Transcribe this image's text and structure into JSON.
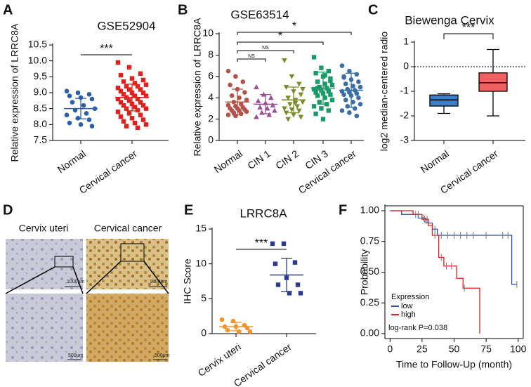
{
  "chart_data": [
    {
      "panel": "A",
      "type": "dotplot",
      "title": "GSE52904",
      "ylabel": "Relative expression of LRRC8A",
      "categories": [
        "Normal",
        "Cervical cancer"
      ],
      "colors": [
        "#2b5fa6",
        "#e3201b"
      ],
      "markers": [
        "circle",
        "square"
      ],
      "values": [
        [
          9.05,
          9.0,
          8.95,
          8.9,
          8.85,
          8.8,
          8.7,
          8.6,
          8.5,
          8.45,
          8.35,
          8.3,
          8.2,
          8.15,
          8.05,
          8.0,
          7.95
        ],
        [
          9.95,
          9.8,
          9.6,
          9.55,
          9.45,
          9.4,
          9.35,
          9.3,
          9.25,
          9.2,
          9.2,
          9.15,
          9.1,
          9.1,
          9.05,
          9.0,
          9.0,
          8.95,
          8.9,
          8.9,
          8.85,
          8.8,
          8.8,
          8.75,
          8.7,
          8.7,
          8.65,
          8.6,
          8.6,
          8.55,
          8.5,
          8.5,
          8.45,
          8.4,
          8.35,
          8.3,
          8.25,
          8.2,
          8.15,
          8.1,
          8.05,
          8.0,
          7.95,
          7.9
        ]
      ],
      "means": [
        8.5,
        8.85
      ],
      "sds": [
        0.32,
        0.42
      ],
      "annotations": [
        "***"
      ],
      "ylim": [
        7.5,
        10.5
      ],
      "yticks": [
        {
          "value": 7.5,
          "label": "7.5"
        },
        {
          "value": 8,
          "label": "8.0"
        },
        {
          "value": 8.5,
          "label": "8.5"
        },
        {
          "value": 9,
          "label": "9.0"
        },
        {
          "value": 9.5,
          "label": "9.5"
        },
        {
          "value": 10,
          "label": "10.0"
        },
        {
          "value": 10.5,
          "label": "10.5"
        }
      ]
    },
    {
      "panel": "B",
      "type": "dotplot",
      "title": "GSE63514",
      "ylabel": "Relative expression of LRRC8A",
      "categories": [
        "Normal",
        "CIN 1",
        "CIN 2",
        "CIN 3",
        "Cervical cancer"
      ],
      "colors": [
        "#b5524a",
        "#9b4f96",
        "#7d8b2e",
        "#1a9a6a",
        "#3a6ea5"
      ],
      "markers": [
        "circle",
        "tri-up",
        "tri-down",
        "square",
        "circle"
      ],
      "values": [
        [
          6.5,
          6.0,
          5.5,
          5.2,
          4.8,
          4.5,
          4.2,
          4.0,
          3.8,
          3.6,
          3.4,
          3.3,
          3.2,
          3.1,
          3.0,
          3.0,
          2.9,
          2.8,
          2.8,
          2.7,
          2.6,
          2.5,
          2.4,
          2.3
        ],
        [
          5.0,
          4.3,
          4.0,
          3.7,
          3.5,
          3.3,
          3.1,
          3.0,
          2.8,
          2.6,
          2.4,
          2.2
        ],
        [
          7.5,
          6.0,
          5.3,
          5.0,
          4.6,
          4.3,
          4.0,
          3.8,
          3.6,
          3.4,
          3.2,
          3.0,
          2.9,
          2.8,
          2.6,
          2.4,
          2.2,
          2.0,
          3.5,
          4.8
        ],
        [
          7.8,
          6.8,
          6.5,
          6.3,
          6.0,
          5.8,
          5.5,
          5.3,
          5.2,
          5.0,
          4.9,
          4.8,
          4.7,
          4.6,
          4.5,
          4.4,
          4.3,
          4.2,
          4.0,
          3.8,
          3.6,
          3.4,
          3.2,
          3.0,
          2.8,
          2.5,
          2.0,
          5.6,
          4.9,
          6.1
        ],
        [
          7.0,
          6.5,
          6.2,
          6.0,
          5.7,
          5.5,
          5.3,
          5.1,
          5.0,
          4.8,
          4.7,
          4.6,
          4.5,
          4.4,
          4.3,
          4.2,
          4.0,
          3.8,
          3.6,
          3.4,
          3.2,
          3.0,
          2.8,
          2.6,
          2.3,
          5.9
        ]
      ],
      "means": [
        3.6,
        3.4,
        3.8,
        4.9,
        4.7
      ],
      "sds": [
        1.2,
        0.9,
        1.2,
        1.5,
        1.6
      ],
      "annotations": [
        "NS",
        "NS",
        "*",
        "*"
      ],
      "ylim": [
        0,
        10
      ],
      "yticks": [
        0,
        2,
        4,
        6,
        8,
        10
      ]
    },
    {
      "panel": "C",
      "type": "box",
      "title": "Biewenga Cervix",
      "ylabel": "log2 median-centered radio",
      "categories": [
        "Normal",
        "Cervical cancer"
      ],
      "colors": [
        "#3d7ec7",
        "#f06060"
      ],
      "boxes": [
        {
          "min": -1.9,
          "q1": -1.6,
          "median": -1.35,
          "q3": -1.15,
          "max": -1.1
        },
        {
          "min": -2.0,
          "q1": -1.0,
          "median": -0.65,
          "q3": -0.25,
          "max": 0.7
        }
      ],
      "hline": 0,
      "annotations": [
        "***"
      ],
      "ylim": [
        -3,
        1
      ],
      "yticks": [
        -3,
        -2,
        -1,
        0,
        1
      ]
    },
    {
      "panel": "E",
      "type": "dotplot",
      "title": "LRRC8A",
      "ylabel": "IHC Score",
      "categories": [
        "Cervix uteri",
        "Cervical cancer"
      ],
      "colors": [
        "#f0962e",
        "#2e3a8c"
      ],
      "markers": [
        "circle",
        "square"
      ],
      "values": [
        [
          2.0,
          1.8,
          1.2,
          1.0,
          1.0,
          0.8,
          0.5,
          0.3,
          0.3
        ],
        [
          12.9,
          12.9,
          10.2,
          10.0,
          8.0,
          7.0,
          7.0,
          5.8,
          5.8
        ]
      ],
      "means": [
        1.0,
        8.4
      ],
      "sds": [
        0.6,
        2.4
      ],
      "annotations": [
        "***"
      ],
      "ylim": [
        0,
        15
      ],
      "yticks": [
        0,
        5,
        10,
        15
      ]
    },
    {
      "panel": "F",
      "type": "km",
      "xlabel": "Time to Follow-Up (month)",
      "ylabel": "Probability",
      "legend_title": "Expression",
      "annotation": "log-rank P=0.038",
      "series": [
        {
          "name": "low",
          "color": "#2b4fa6",
          "x": [
            0,
            9,
            22,
            28,
            33,
            37,
            95
          ],
          "values": [
            1.0,
            0.97,
            0.94,
            0.9,
            0.85,
            0.8,
            0.4
          ],
          "censored": [
            20,
            26,
            30,
            35,
            40,
            45,
            50,
            55,
            60,
            65,
            75,
            88,
            92,
            99
          ]
        },
        {
          "name": "high",
          "color": "#e3201b",
          "x": [
            0,
            18,
            25,
            30,
            33,
            38,
            42,
            52,
            57,
            70
          ],
          "values": [
            1.0,
            0.97,
            0.93,
            0.88,
            0.8,
            0.62,
            0.55,
            0.45,
            0.37,
            0.0
          ],
          "censored": [
            22,
            27,
            29,
            35,
            40,
            44,
            48,
            58
          ]
        }
      ],
      "xlim": [
        -4,
        104
      ],
      "xticks": [
        0,
        25,
        50,
        75,
        100
      ],
      "ylim": [
        -0.04,
        1.04
      ],
      "yticks": [
        {
          "value": 0,
          "label": "0.00"
        },
        {
          "value": 0.25,
          "label": "0.25"
        },
        {
          "value": 0.5,
          "label": "0.50"
        },
        {
          "value": 0.75,
          "label": "0.75"
        },
        {
          "value": 1,
          "label": "1.00"
        }
      ]
    }
  ],
  "images": {
    "panel": "D",
    "labels": [
      "Cervix uteri",
      "Cervical cancer"
    ],
    "scale_bars": [
      "1000μm",
      "1000μm",
      "500μm",
      "500μm"
    ]
  }
}
